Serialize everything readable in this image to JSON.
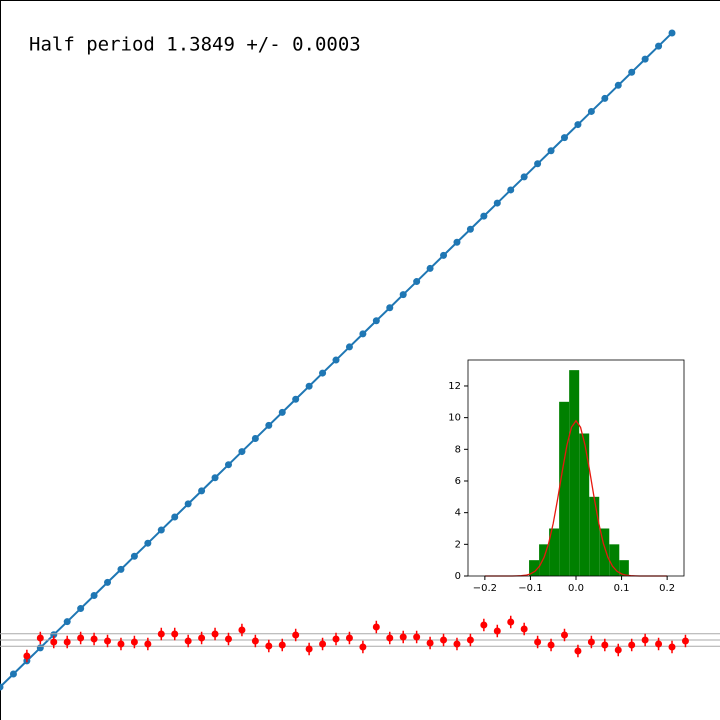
{
  "chart_data": [
    {
      "type": "line",
      "title": "Half period  1.3849 +/- 0.0003",
      "color": "#1f77b4",
      "x": [
        0,
        1,
        2,
        3,
        4,
        5,
        6,
        7,
        8,
        9,
        10,
        11,
        12,
        13,
        14,
        15,
        16,
        17,
        18,
        19,
        20,
        21,
        22,
        23,
        24,
        25,
        26,
        27,
        28,
        29,
        30,
        31,
        32,
        33,
        34,
        35,
        36,
        37,
        38,
        39,
        40,
        41,
        42,
        43,
        44,
        45,
        46,
        47,
        48,
        49,
        50
      ],
      "values": [
        0,
        1.38,
        2.77,
        4.15,
        5.54,
        6.92,
        8.31,
        9.69,
        11.08,
        12.46,
        13.85,
        15.23,
        16.62,
        18.0,
        19.39,
        20.77,
        22.16,
        23.54,
        24.93,
        26.31,
        27.7,
        29.08,
        30.47,
        31.85,
        33.24,
        34.62,
        36.01,
        37.39,
        38.78,
        40.16,
        41.55,
        42.93,
        44.32,
        45.7,
        47.09,
        48.47,
        49.86,
        51.24,
        52.63,
        54.01,
        55.4,
        56.78,
        58.17,
        59.55,
        60.94,
        62.32,
        63.71,
        65.09,
        66.48,
        67.86,
        69.25
      ],
      "xlim": [
        0,
        53.57
      ],
      "ylim": [
        -3.49,
        72.74
      ]
    },
    {
      "type": "errorbar",
      "color": "#ff0000",
      "hline_color": "#aaaaaa",
      "hlines": [
        -0.05,
        0,
        0.05
      ],
      "yerr": 0.05,
      "x": [
        2,
        3,
        4,
        5,
        6,
        7,
        8,
        9,
        10,
        11,
        12,
        13,
        14,
        15,
        16,
        17,
        18,
        19,
        20,
        21,
        22,
        23,
        24,
        25,
        26,
        27,
        28,
        29,
        30,
        31,
        32,
        33,
        34,
        35,
        36,
        37,
        38,
        39,
        40,
        41,
        42,
        43,
        44,
        45,
        46,
        47,
        48,
        49,
        50,
        51
      ],
      "values": [
        -0.128,
        0.016,
        -0.016,
        -0.016,
        0.016,
        0.008,
        -0.008,
        -0.032,
        -0.016,
        -0.032,
        0.048,
        0.048,
        -0.008,
        0.016,
        0.048,
        0.008,
        0.08,
        -0.008,
        -0.048,
        -0.04,
        0.04,
        -0.072,
        -0.032,
        0.008,
        0.016,
        -0.056,
        0.104,
        0.016,
        0.024,
        0.024,
        -0.024,
        0,
        -0.032,
        0,
        0.12,
        0.072,
        0.144,
        0.088,
        -0.016,
        -0.04,
        0.04,
        -0.088,
        -0.016,
        -0.04,
        -0.08,
        -0.04,
        0,
        -0.032,
        -0.056,
        -0.008
      ],
      "xlim": [
        0,
        53.57
      ],
      "ylim": [
        -0.64,
        5.12
      ]
    },
    {
      "type": "histogram",
      "color": "#008000",
      "bins": [
        -0.103,
        -0.081,
        -0.059,
        -0.037,
        -0.015,
        0.007,
        0.029,
        0.051,
        0.073,
        0.095,
        0.116
      ],
      "values": [
        1,
        2,
        3,
        11,
        13,
        9,
        5,
        3,
        2,
        1
      ],
      "curve": {
        "color": "#e8190f",
        "x": [
          -0.2,
          -0.19,
          -0.18,
          -0.17,
          -0.16,
          -0.15,
          -0.14,
          -0.13,
          -0.12,
          -0.11,
          -0.1,
          -0.09,
          -0.08,
          -0.07,
          -0.06,
          -0.05,
          -0.04,
          -0.03,
          -0.02,
          -0.01,
          0,
          0.01,
          0.02,
          0.03,
          0.04,
          0.05,
          0.06,
          0.07,
          0.08,
          0.09,
          0.1,
          0.11,
          0.12,
          0.13,
          0.14,
          0.15,
          0.16,
          0.17,
          0.18,
          0.19,
          0.2
        ],
        "values": [
          0,
          0,
          0,
          0,
          0,
          0,
          0,
          0.01,
          0.02,
          0.05,
          0.13,
          0.3,
          0.62,
          1.18,
          2.06,
          3.32,
          4.91,
          6.64,
          8.24,
          9.39,
          9.8,
          9.39,
          8.24,
          6.64,
          4.91,
          3.32,
          2.06,
          1.18,
          0.62,
          0.3,
          0.13,
          0.05,
          0.02,
          0.01,
          0,
          0,
          0,
          0,
          0,
          0,
          0
        ]
      },
      "xlim": [
        -0.237,
        0.237
      ],
      "ylim": [
        0,
        13.64
      ],
      "xticks": [
        {
          "value": -0.2,
          "label": "−0.2"
        },
        {
          "value": -0.1,
          "label": "−0.1"
        },
        {
          "value": 0,
          "label": "0.0"
        },
        0.1,
        0.2
      ],
      "yticks": [
        0,
        2,
        4,
        6,
        8,
        10,
        12
      ]
    }
  ]
}
